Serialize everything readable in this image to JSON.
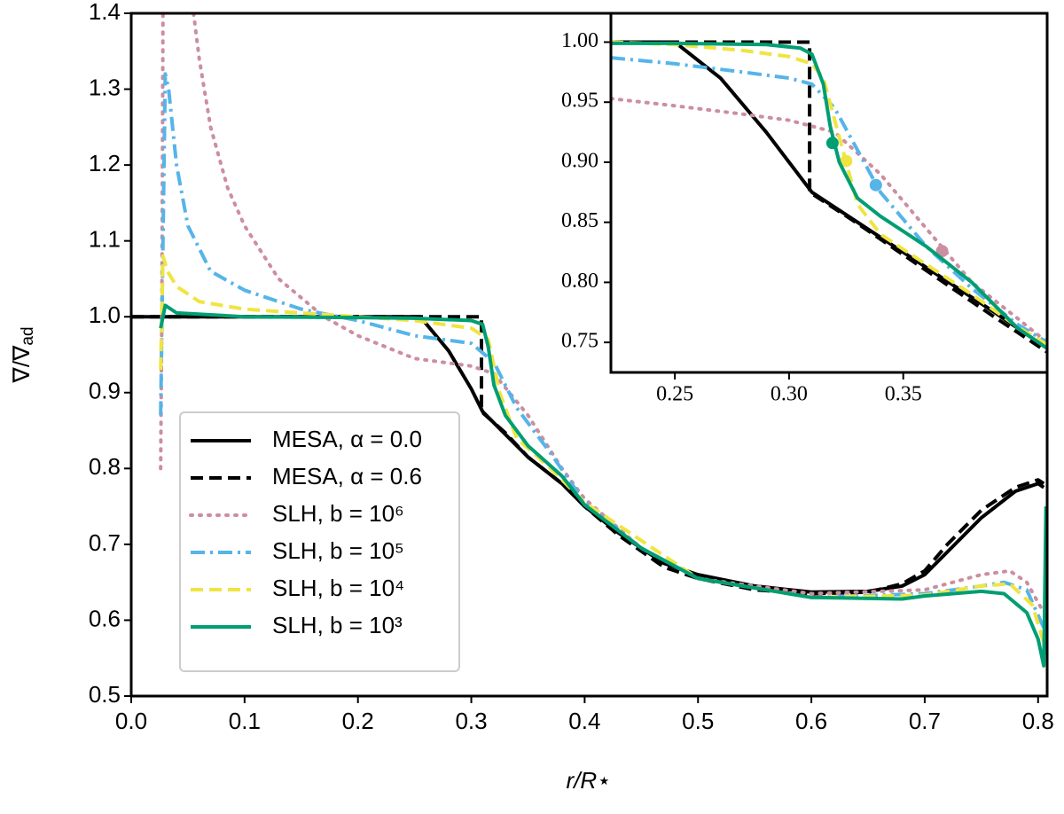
{
  "chart_data": [
    {
      "type": "line",
      "xlabel": "r/R⋆",
      "ylabel": [
        "∇/∇",
        "ad"
      ],
      "xlim": [
        0,
        0.808
      ],
      "ylim": [
        0.5,
        1.4
      ],
      "xticks": [
        {
          "value": 0,
          "label": "0.0"
        },
        0.1,
        0.2,
        0.3,
        0.4,
        0.5,
        0.6,
        0.7,
        0.8
      ],
      "yticks": [
        0.5,
        0.6,
        0.7,
        0.8,
        0.9,
        {
          "value": 1,
          "label": "1.0"
        },
        1.1,
        1.2,
        1.3,
        1.4
      ],
      "legend": "lower left",
      "series": [
        {
          "name": "MESA, α = 0.0",
          "color": "#000000",
          "linestyle": "solid",
          "x": [
            0,
            0.1,
            0.2,
            0.255,
            0.28,
            0.3,
            0.31,
            0.33,
            0.35,
            0.38,
            0.4,
            0.43,
            0.47,
            0.5,
            0.55,
            0.6,
            0.65,
            0.68,
            0.7,
            0.72,
            0.75,
            0.78,
            0.8,
            0.805
          ],
          "values": [
            1,
            1,
            1,
            1,
            0.955,
            0.905,
            0.875,
            0.845,
            0.815,
            0.78,
            0.75,
            0.715,
            0.675,
            0.66,
            0.645,
            0.637,
            0.638,
            0.645,
            0.66,
            0.69,
            0.735,
            0.77,
            0.78,
            0.775
          ]
        },
        {
          "name": "MESA, α = 0.6",
          "color": "#000000",
          "linestyle": "dashed",
          "x": [
            0,
            0.1,
            0.2,
            0.309,
            0.309,
            0.33,
            0.35,
            0.38,
            0.4,
            0.43,
            0.47,
            0.5,
            0.55,
            0.6,
            0.65,
            0.68,
            0.7,
            0.72,
            0.75,
            0.78,
            0.8,
            0.805
          ],
          "values": [
            1,
            1,
            1,
            1,
            0.875,
            0.847,
            0.815,
            0.78,
            0.75,
            0.712,
            0.67,
            0.655,
            0.64,
            0.635,
            0.637,
            0.648,
            0.665,
            0.7,
            0.745,
            0.775,
            0.785,
            0.78
          ]
        },
        {
          "name": "SLH, b = 10⁶",
          "color": "#cc8ea0",
          "linestyle": "dotted",
          "x": [
            0.026,
            0.027,
            0.0275,
            0.028,
            null,
            0.055,
            0.06,
            0.07,
            0.085,
            0.1,
            0.13,
            0.17,
            0.2,
            0.25,
            0.3,
            0.32,
            0.35,
            0.38,
            0.4,
            0.45,
            0.5,
            0.6,
            0.7,
            0.75,
            0.775,
            0.79,
            0.805
          ],
          "values": [
            0.8,
            1.0,
            1.2,
            1.4,
            null,
            1.4,
            1.34,
            1.25,
            1.17,
            1.12,
            1.05,
            1.0,
            0.975,
            0.945,
            0.935,
            0.925,
            0.87,
            0.8,
            0.76,
            0.695,
            0.655,
            0.635,
            0.64,
            0.66,
            0.665,
            0.65,
            0.61
          ]
        },
        {
          "name": "SLH, b = 10⁵",
          "color": "#56b4e9",
          "linestyle": "dashdot",
          "x": [
            0.026,
            0.028,
            0.03,
            0.033,
            0.04,
            0.05,
            0.07,
            0.1,
            0.15,
            0.2,
            0.25,
            0.3,
            0.32,
            0.34,
            0.37,
            0.4,
            0.45,
            0.5,
            0.6,
            0.7,
            0.75,
            0.77,
            0.79,
            0.805
          ],
          "values": [
            0.87,
            1.1,
            1.32,
            1.3,
            1.2,
            1.12,
            1.06,
            1.035,
            1.01,
            0.995,
            0.975,
            0.965,
            0.94,
            0.88,
            0.82,
            0.755,
            0.695,
            0.655,
            0.63,
            0.635,
            0.645,
            0.65,
            0.64,
            0.59
          ]
        },
        {
          "name": "SLH, b = 10⁴",
          "color": "#f0e442",
          "linestyle": "dashed",
          "x": [
            0.026,
            0.028,
            0.032,
            0.04,
            0.06,
            0.1,
            0.2,
            0.25,
            0.3,
            0.315,
            0.325,
            0.34,
            0.37,
            0.4,
            0.5,
            0.6,
            0.7,
            0.75,
            0.775,
            0.795,
            0.805
          ],
          "values": [
            0.93,
            1.08,
            1.06,
            1.04,
            1.02,
            1.01,
            1.0,
            0.995,
            0.985,
            0.97,
            0.9,
            0.84,
            0.8,
            0.755,
            0.655,
            0.63,
            0.633,
            0.645,
            0.648,
            0.62,
            0.57
          ]
        },
        {
          "name": "SLH, b = 10³",
          "color": "#009e73",
          "linestyle": "solid",
          "x": [
            0.026,
            0.03,
            0.04,
            0.1,
            0.2,
            0.25,
            0.3,
            0.31,
            0.315,
            0.32,
            0.33,
            0.35,
            0.38,
            0.4,
            0.45,
            0.5,
            0.6,
            0.68,
            0.7,
            0.75,
            0.77,
            0.79,
            0.8,
            0.805,
            0.807
          ],
          "values": [
            0.985,
            1.015,
            1.005,
            1.0,
            0.999,
            0.998,
            0.995,
            0.99,
            0.96,
            0.91,
            0.87,
            0.83,
            0.79,
            0.752,
            0.695,
            0.655,
            0.63,
            0.628,
            0.632,
            0.638,
            0.635,
            0.61,
            0.575,
            0.54,
            0.75
          ]
        }
      ]
    },
    {
      "type": "line",
      "xlim": [
        0.222,
        0.413
      ],
      "ylim": [
        0.725,
        1.024
      ],
      "xticks": [
        0.25,
        {
          "value": 0.3,
          "label": "0.30"
        },
        0.35
      ],
      "yticks": [
        0.75,
        {
          "value": 0.8,
          "label": "0.80"
        },
        0.85,
        {
          "value": 0.9,
          "label": "0.90"
        },
        0.95,
        {
          "value": 1,
          "label": "1.00"
        }
      ],
      "series": [
        {
          "color": "#000000",
          "linestyle": "solid",
          "x": [
            0.222,
            0.25,
            0.27,
            0.29,
            0.31,
            0.33,
            0.35,
            0.37,
            0.39,
            0.413
          ],
          "values": [
            1,
            1,
            0.97,
            0.925,
            0.875,
            0.85,
            0.825,
            0.8,
            0.775,
            0.745
          ]
        },
        {
          "color": "#000000",
          "linestyle": "dashed",
          "x": [
            0.222,
            0.27,
            0.309,
            0.309,
            0.33,
            0.35,
            0.37,
            0.39,
            0.413
          ],
          "values": [
            1,
            1,
            1,
            0.875,
            0.849,
            0.823,
            0.797,
            0.771,
            0.742
          ]
        },
        {
          "color": "#cc8ea0",
          "linestyle": "dotted",
          "x": [
            0.222,
            0.25,
            0.28,
            0.3,
            0.32,
            0.34,
            0.36,
            0.38,
            0.4,
            0.413
          ],
          "values": [
            0.953,
            0.947,
            0.94,
            0.935,
            0.925,
            0.89,
            0.845,
            0.8,
            0.77,
            0.75
          ],
          "points": {
            "x": [
              0.367
            ],
            "values": [
              0.826
            ]
          }
        },
        {
          "color": "#56b4e9",
          "linestyle": "dashdot",
          "x": [
            0.222,
            0.25,
            0.28,
            0.3,
            0.31,
            0.32,
            0.33,
            0.34,
            0.36,
            0.38,
            0.4,
            0.413
          ],
          "values": [
            0.987,
            0.982,
            0.975,
            0.97,
            0.965,
            0.945,
            0.91,
            0.875,
            0.83,
            0.795,
            0.765,
            0.75
          ],
          "points": {
            "x": [
              0.338
            ],
            "values": [
              0.881
            ]
          }
        },
        {
          "color": "#f0e442",
          "linestyle": "dashed",
          "x": [
            0.222,
            0.25,
            0.28,
            0.3,
            0.31,
            0.315,
            0.32,
            0.325,
            0.33,
            0.34,
            0.36,
            0.38,
            0.4,
            0.413
          ],
          "values": [
            1,
            0.998,
            0.993,
            0.988,
            0.982,
            0.97,
            0.935,
            0.9,
            0.865,
            0.84,
            0.815,
            0.79,
            0.763,
            0.748
          ],
          "points": {
            "x": [
              0.325
            ],
            "values": [
              0.901
            ]
          }
        },
        {
          "color": "#009e73",
          "linestyle": "solid",
          "x": [
            0.222,
            0.25,
            0.29,
            0.305,
            0.31,
            0.315,
            0.318,
            0.322,
            0.33,
            0.34,
            0.36,
            0.38,
            0.4,
            0.413
          ],
          "values": [
            0.999,
            0.999,
            0.998,
            0.995,
            0.99,
            0.965,
            0.93,
            0.9,
            0.87,
            0.855,
            0.83,
            0.8,
            0.762,
            0.745
          ],
          "points": {
            "x": [
              0.319
            ],
            "values": [
              0.916
            ]
          }
        }
      ]
    }
  ]
}
